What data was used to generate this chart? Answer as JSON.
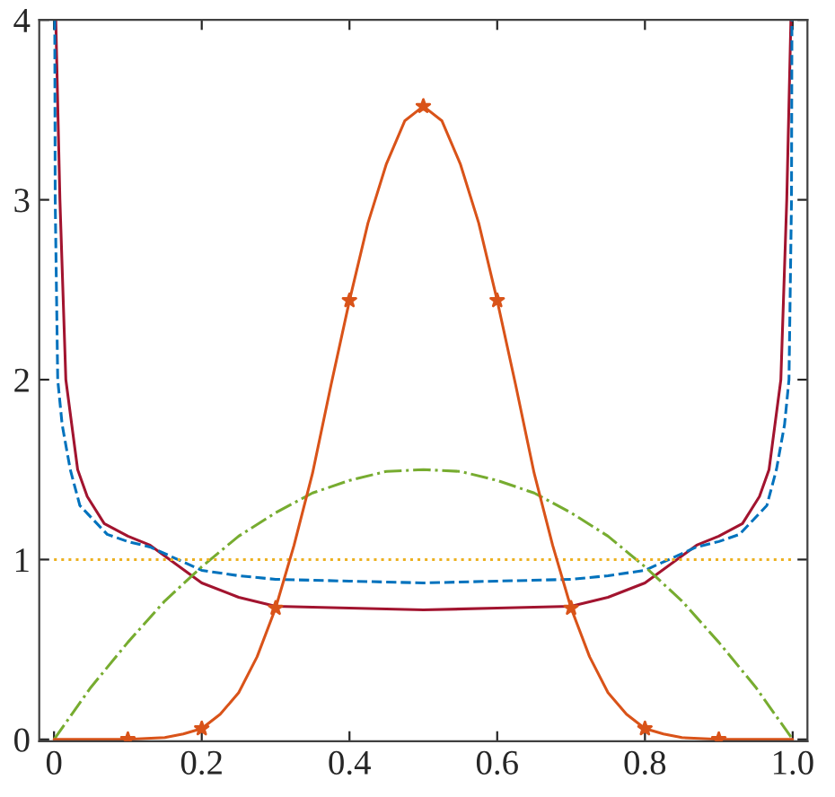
{
  "chart_data": {
    "type": "line",
    "series": [
      {
        "color": "#a2142f",
        "line_style": "solid",
        "x": [
          0.0024,
          0.008,
          0.016,
          0.032,
          0.045,
          0.068,
          0.1,
          0.13,
          0.2,
          0.25,
          0.3,
          0.35,
          0.4,
          0.5,
          0.6,
          0.65,
          0.7,
          0.75,
          0.8,
          0.87,
          0.9,
          0.932,
          0.955,
          0.968,
          0.984,
          0.992,
          0.9976
        ],
        "values": [
          4,
          3,
          2,
          1.5,
          1.35,
          1.2,
          1.13,
          1.08,
          0.87,
          0.79,
          0.74,
          0.735,
          0.73,
          0.72,
          0.73,
          0.735,
          0.74,
          0.79,
          0.87,
          1.08,
          1.13,
          1.2,
          1.35,
          1.5,
          2,
          3,
          4
        ]
      },
      {
        "color": "#0072bd",
        "line_style": "dashed",
        "x": [
          0.001,
          0.0016,
          0.005,
          0.011,
          0.022,
          0.035,
          0.072,
          0.1,
          0.13,
          0.2,
          0.25,
          0.3,
          0.4,
          0.5,
          0.6,
          0.7,
          0.75,
          0.8,
          0.87,
          0.9,
          0.928,
          0.965,
          0.978,
          0.989,
          0.995,
          0.9984,
          0.999
        ],
        "values": [
          4,
          3,
          2,
          1.75,
          1.5,
          1.3,
          1.14,
          1.1,
          1.07,
          0.94,
          0.91,
          0.89,
          0.88,
          0.87,
          0.88,
          0.89,
          0.91,
          0.94,
          1.07,
          1.1,
          1.14,
          1.3,
          1.5,
          1.75,
          2,
          3,
          4
        ]
      },
      {
        "color": "#77ac30",
        "line_style": "dashdot",
        "x": [
          0,
          0.05,
          0.1,
          0.15,
          0.2,
          0.25,
          0.3,
          0.35,
          0.4,
          0.45,
          0.5,
          0.55,
          0.6,
          0.65,
          0.7,
          0.75,
          0.8,
          0.85,
          0.9,
          0.95,
          1
        ],
        "values": [
          0,
          0.29,
          0.54,
          0.77,
          0.96,
          1.13,
          1.26,
          1.37,
          1.44,
          1.49,
          1.5,
          1.49,
          1.44,
          1.37,
          1.26,
          1.13,
          0.96,
          0.77,
          0.54,
          0.29,
          0
        ]
      },
      {
        "color": "#edb120",
        "line_style": "dotted",
        "x": [
          0,
          1
        ],
        "values": [
          1,
          1
        ]
      },
      {
        "color": "#d95319",
        "line_style": "solid",
        "x": [
          0,
          0.05,
          0.1,
          0.15,
          0.175,
          0.2,
          0.225,
          0.25,
          0.275,
          0.3,
          0.325,
          0.35,
          0.375,
          0.4,
          0.425,
          0.45,
          0.475,
          0.5,
          0.525,
          0.55,
          0.575,
          0.6,
          0.625,
          0.65,
          0.675,
          0.7,
          0.725,
          0.75,
          0.775,
          0.8,
          0.825,
          0.85,
          0.9,
          0.95,
          1
        ],
        "values": [
          0,
          0,
          0,
          0.01,
          0.03,
          0.06,
          0.14,
          0.26,
          0.46,
          0.73,
          1.08,
          1.48,
          1.97,
          2.44,
          2.87,
          3.2,
          3.44,
          3.52,
          3.44,
          3.2,
          2.87,
          2.44,
          1.97,
          1.48,
          1.08,
          0.73,
          0.46,
          0.26,
          0.14,
          0.06,
          0.03,
          0.01,
          0,
          0,
          0
        ]
      },
      {
        "type": "scatter",
        "color": "#d95319",
        "marker": "star",
        "x": [
          0.1,
          0.2,
          0.3,
          0.4,
          0.5,
          0.6,
          0.7,
          0.8,
          0.9
        ],
        "values": [
          0,
          0.06,
          0.73,
          2.44,
          3.52,
          2.44,
          0.73,
          0.06,
          0
        ]
      }
    ],
    "xlim": [
      -0.02,
      1.02
    ],
    "ylim": [
      -0.01,
      4
    ],
    "xticks": [
      0,
      0.2,
      0.4,
      0.6,
      0.8,
      {
        "value": 1,
        "label": "1.0"
      }
    ],
    "yticks": [
      0,
      1,
      2,
      3,
      4
    ],
    "grid": false
  }
}
